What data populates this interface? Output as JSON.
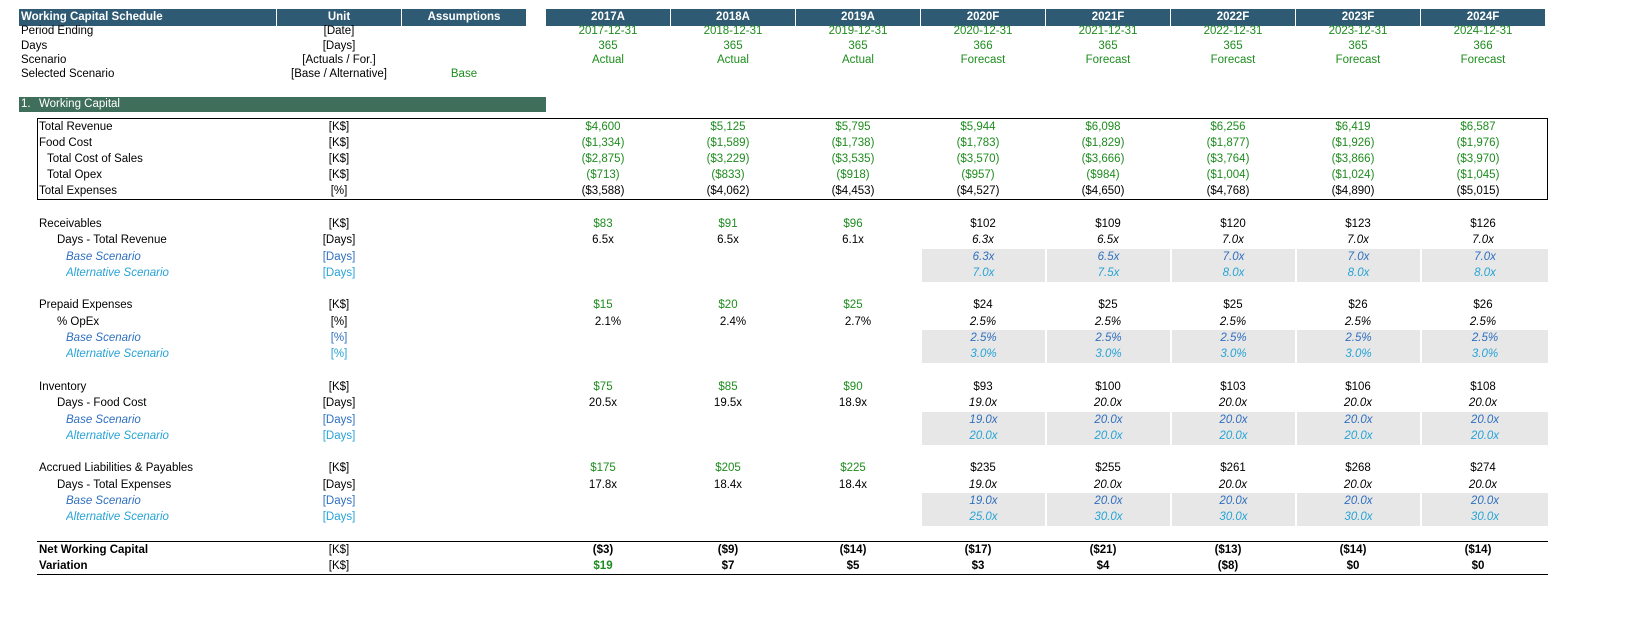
{
  "header": {
    "title": "Working Capital Schedule",
    "unit": "Unit",
    "assumptions": "Assumptions",
    "years": [
      "2017A",
      "2018A",
      "2019A",
      "2020F",
      "2021F",
      "2022F",
      "2023F",
      "2024F"
    ]
  },
  "period": {
    "label": "Period Ending",
    "unit": "[Date]",
    "values": [
      "2017-12-31",
      "2018-12-31",
      "2019-12-31",
      "2020-12-31",
      "2021-12-31",
      "2022-12-31",
      "2023-12-31",
      "2024-12-31"
    ]
  },
  "days": {
    "label": "Days",
    "unit": "[Days]",
    "values": [
      "365",
      "365",
      "365",
      "366",
      "365",
      "365",
      "365",
      "366"
    ]
  },
  "scenario": {
    "label": "Scenario",
    "unit": "[Actuals / For.]",
    "values": [
      "Actual",
      "Actual",
      "Actual",
      "Forecast",
      "Forecast",
      "Forecast",
      "Forecast",
      "Forecast"
    ]
  },
  "selected": {
    "label": "Selected Scenario",
    "unit": "[Base / Alternative]",
    "value": "Base"
  },
  "section": {
    "num": "1.",
    "title": "Working Capital"
  },
  "rev": {
    "label": "Total Revenue",
    "unit": "[K$]",
    "values": [
      "$4,600",
      "$5,125",
      "$5,795",
      "$5,944",
      "$6,098",
      "$6,256",
      "$6,419",
      "$6,587"
    ]
  },
  "food": {
    "label": "Food Cost",
    "unit": "[K$]",
    "values": [
      "($1,334)",
      "($1,589)",
      "($1,738)",
      "($1,783)",
      "($1,829)",
      "($1,877)",
      "($1,926)",
      "($1,976)"
    ]
  },
  "cos": {
    "label": "Total Cost of Sales",
    "unit": "[K$]",
    "values": [
      "($2,875)",
      "($3,229)",
      "($3,535)",
      "($3,570)",
      "($3,666)",
      "($3,764)",
      "($3,866)",
      "($3,970)"
    ]
  },
  "opex": {
    "label": "Total Opex",
    "unit": "[K$]",
    "values": [
      "($713)",
      "($833)",
      "($918)",
      "($957)",
      "($984)",
      "($1,004)",
      "($1,024)",
      "($1,045)"
    ]
  },
  "exp": {
    "label": "Total Expenses",
    "unit": "[%]",
    "values": [
      "($3,588)",
      "($4,062)",
      "($4,453)",
      "($4,527)",
      "($4,650)",
      "($4,768)",
      "($4,890)",
      "($5,015)"
    ]
  },
  "recv": {
    "label": "Receivables",
    "unit": "[K$]",
    "values": [
      "$83",
      "$91",
      "$96",
      "$102",
      "$109",
      "$120",
      "$123",
      "$126"
    ]
  },
  "recv_days": {
    "label": "Days - Total Revenue",
    "unit": "[Days]",
    "values": [
      "6.5x",
      "6.5x",
      "6.1x",
      "6.3x",
      "6.5x",
      "7.0x",
      "7.0x",
      "7.0x"
    ]
  },
  "recv_base": {
    "label": "Base Scenario",
    "unit": "[Days]",
    "values": [
      "6.3x",
      "6.5x",
      "7.0x",
      "7.0x",
      "7.0x"
    ]
  },
  "recv_alt": {
    "label": "Alternative Scenario",
    "unit": "[Days]",
    "values": [
      "7.0x",
      "7.5x",
      "8.0x",
      "8.0x",
      "8.0x"
    ]
  },
  "prep": {
    "label": "Prepaid Expenses",
    "unit": "[K$]",
    "values": [
      "$15",
      "$20",
      "$25",
      "$24",
      "$25",
      "$25",
      "$26",
      "$26"
    ]
  },
  "prep_pct": {
    "label": "% OpEx",
    "unit": "[%]",
    "values": [
      "2.1%",
      "2.4%",
      "2.7%",
      "2.5%",
      "2.5%",
      "2.5%",
      "2.5%",
      "2.5%"
    ]
  },
  "prep_base": {
    "label": "Base Scenario",
    "unit": "[%]",
    "values": [
      "2.5%",
      "2.5%",
      "2.5%",
      "2.5%",
      "2.5%"
    ]
  },
  "prep_alt": {
    "label": "Alternative Scenario",
    "unit": "[%]",
    "values": [
      "3.0%",
      "3.0%",
      "3.0%",
      "3.0%",
      "3.0%"
    ]
  },
  "inv": {
    "label": "Inventory",
    "unit": "[K$]",
    "values": [
      "$75",
      "$85",
      "$90",
      "$93",
      "$100",
      "$103",
      "$106",
      "$108"
    ]
  },
  "inv_days": {
    "label": "Days - Food Cost",
    "unit": "[Days]",
    "values": [
      "20.5x",
      "19.5x",
      "18.9x",
      "19.0x",
      "20.0x",
      "20.0x",
      "20.0x",
      "20.0x"
    ]
  },
  "inv_base": {
    "label": "Base Scenario",
    "unit": "[Days]",
    "values": [
      "19.0x",
      "20.0x",
      "20.0x",
      "20.0x",
      "20.0x"
    ]
  },
  "inv_alt": {
    "label": "Alternative Scenario",
    "unit": "[Days]",
    "values": [
      "20.0x",
      "20.0x",
      "20.0x",
      "20.0x",
      "20.0x"
    ]
  },
  "acc": {
    "label": "Accrued Liabilities & Payables",
    "unit": "[K$]",
    "values": [
      "$175",
      "$205",
      "$225",
      "$235",
      "$255",
      "$261",
      "$268",
      "$274"
    ]
  },
  "acc_days": {
    "label": "Days - Total Expenses",
    "unit": "[Days]",
    "values": [
      "17.8x",
      "18.4x",
      "18.4x",
      "19.0x",
      "20.0x",
      "20.0x",
      "20.0x",
      "20.0x"
    ]
  },
  "acc_base": {
    "label": "Base Scenario",
    "unit": "[Days]",
    "values": [
      "19.0x",
      "20.0x",
      "20.0x",
      "20.0x",
      "20.0x"
    ]
  },
  "acc_alt": {
    "label": "Alternative Scenario",
    "unit": "[Days]",
    "values": [
      "25.0x",
      "30.0x",
      "30.0x",
      "30.0x",
      "30.0x"
    ]
  },
  "nwc": {
    "label": "Net Working Capital",
    "unit": "[K$]",
    "values": [
      "($3)",
      "($9)",
      "($14)",
      "($17)",
      "($21)",
      "($13)",
      "($14)",
      "($14)"
    ]
  },
  "var": {
    "label": "Variation",
    "unit": "[K$]",
    "values": [
      "$19",
      "$7",
      "$5",
      "$3",
      "$4",
      "($8)",
      "$0",
      "$0"
    ]
  },
  "colors": {
    "header_bg": "#2E5A73",
    "section_bg": "#3F6E5A",
    "input_green": "#1E8C1E",
    "base_blue": "#2E6FBF",
    "alt_cyan": "#27A3D6",
    "forecast_grey": "#E7E7E7"
  }
}
